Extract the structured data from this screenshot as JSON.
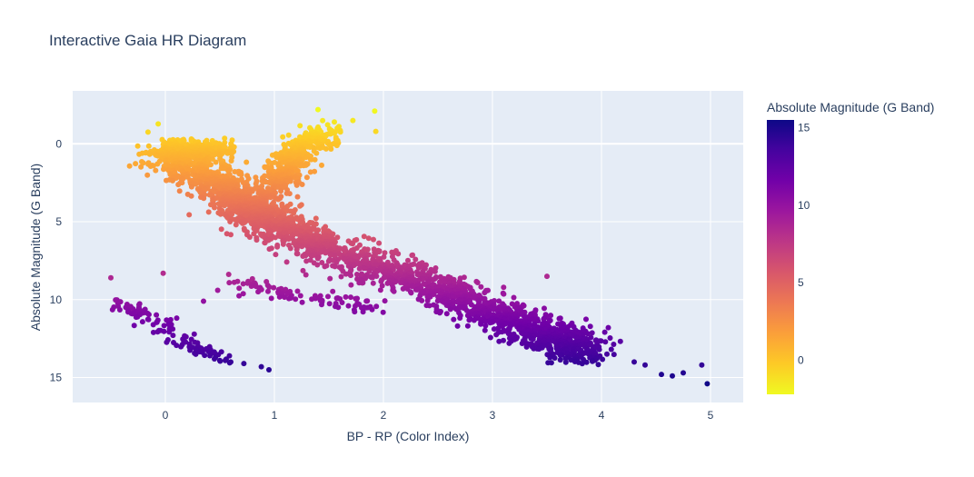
{
  "chart_data": {
    "type": "scatter",
    "title": "Interactive Gaia HR Diagram",
    "xlabel": "BP - RP (Color Index)",
    "ylabel": "Absolute Magnitude (G Band)",
    "xlim": [
      -0.85,
      5.3
    ],
    "ylim": [
      16.6,
      -3.4
    ],
    "y_reversed": true,
    "grid": true,
    "x_ticks": [
      "0",
      "1",
      "2",
      "3",
      "4",
      "5"
    ],
    "y_ticks": [
      "0",
      "5",
      "10",
      "15"
    ],
    "colorbar": {
      "title": "Absolute Magnitude (G Band)",
      "ticks": [
        "0",
        "5",
        "10",
        "15"
      ],
      "range": [
        -2.2,
        15.5
      ],
      "colorscale": [
        "#f0f921",
        "#fdca26",
        "#fb9f3a",
        "#ed7953",
        "#d8576b",
        "#bd3786",
        "#9c179e",
        "#7201a8",
        "#46039f",
        "#0d0887"
      ]
    },
    "regions": [
      {
        "name": "main-sequence",
        "points": [
          [
            0.0,
            0.5
          ],
          [
            0.3,
            1.8
          ],
          [
            0.6,
            3.0
          ],
          [
            0.8,
            4.2
          ],
          [
            1.0,
            5.2
          ],
          [
            1.4,
            6.5
          ],
          [
            2.0,
            8.0
          ],
          [
            2.5,
            9.3
          ],
          [
            3.0,
            10.8
          ],
          [
            3.5,
            12.3
          ],
          [
            3.9,
            13.5
          ]
        ],
        "spread": 0.75
      },
      {
        "name": "red-giant-branch",
        "points": [
          [
            1.0,
            3.0
          ],
          [
            1.1,
            1.5
          ],
          [
            1.25,
            0.3
          ],
          [
            1.5,
            -0.7
          ]
        ],
        "spread": 0.5
      },
      {
        "name": "horizontal-branch",
        "points": [
          [
            0.0,
            0.3
          ],
          [
            0.3,
            0.4
          ],
          [
            0.6,
            0.5
          ]
        ],
        "spread": 0.45
      },
      {
        "name": "white-dwarfs",
        "points": [
          [
            -0.45,
            10.0
          ],
          [
            -0.1,
            11.3
          ],
          [
            0.2,
            12.8
          ],
          [
            0.5,
            13.8
          ]
        ],
        "spread": 0.35
      },
      {
        "name": "subdwarf-band",
        "points": [
          [
            0.7,
            9.0
          ],
          [
            1.2,
            9.8
          ],
          [
            2.0,
            10.4
          ]
        ],
        "spread": 0.45
      }
    ],
    "notable_points": [
      [
        1.4,
        -2.2
      ],
      [
        1.92,
        -2.1
      ],
      [
        1.93,
        -0.8
      ],
      [
        1.72,
        -1.5
      ],
      [
        1.55,
        -1.4
      ],
      [
        -0.5,
        8.6
      ],
      [
        -0.02,
        8.3
      ],
      [
        0.95,
        14.5
      ],
      [
        0.88,
        14.3
      ],
      [
        0.72,
        14.1
      ],
      [
        0.6,
        14.0
      ],
      [
        0.45,
        13.8
      ],
      [
        4.3,
        14.0
      ],
      [
        4.4,
        14.2
      ],
      [
        4.55,
        14.8
      ],
      [
        4.65,
        14.9
      ],
      [
        4.75,
        14.7
      ],
      [
        4.92,
        14.2
      ],
      [
        4.97,
        15.4
      ],
      [
        3.5,
        8.5
      ],
      [
        3.9,
        12.8
      ],
      [
        4.05,
        13.5
      ],
      [
        3.98,
        13.2
      ],
      [
        0.35,
        10.1
      ],
      [
        0.48,
        9.4
      ]
    ]
  }
}
